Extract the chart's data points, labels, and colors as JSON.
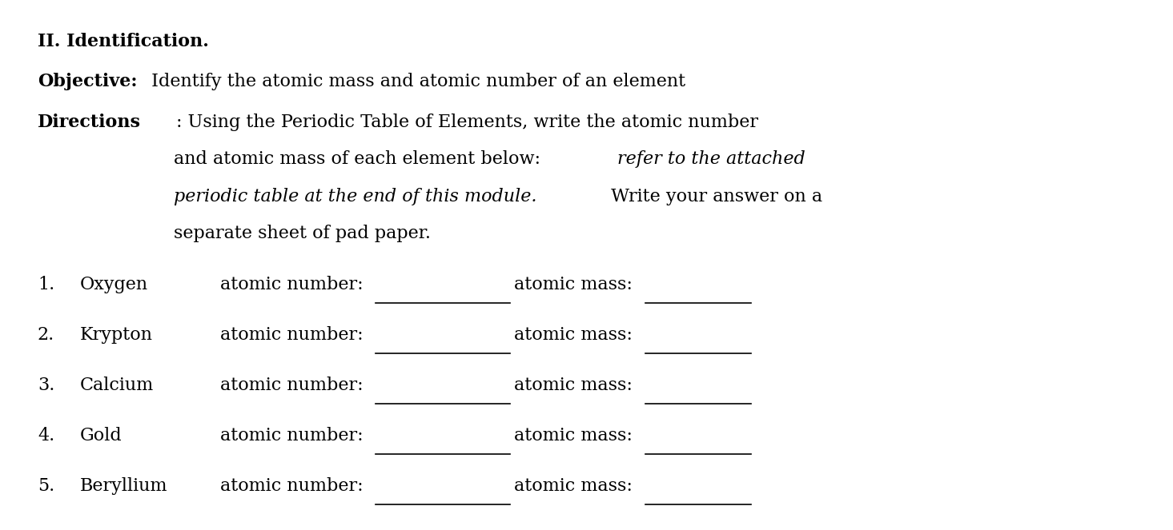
{
  "background_color": "#ffffff",
  "fig_width": 14.65,
  "fig_height": 6.63,
  "title": "II. Identification.",
  "objective_bold": "Objective:",
  "objective_normal": " Identify the atomic mass and atomic number of an element",
  "directions_bold": "Directions",
  "directions_colon_normal": ": Using the Periodic Table of Elements, write the atomic number",
  "directions_indent_line2_normal": "and atomic mass of each element below: ",
  "directions_indent_line2_italic": "refer to the attached",
  "directions_indent_line3_italic": "periodic table at the end of this module.",
  "directions_indent_line3_normal": " Write your answer on a",
  "directions_indent_line4": "separate sheet of pad paper.",
  "elements": [
    "Oxygen",
    "Krypton",
    "Calcium",
    "Gold",
    "Beryllium"
  ],
  "font_size": 16,
  "text_color": "#000000",
  "font_family": "DejaVu Serif"
}
